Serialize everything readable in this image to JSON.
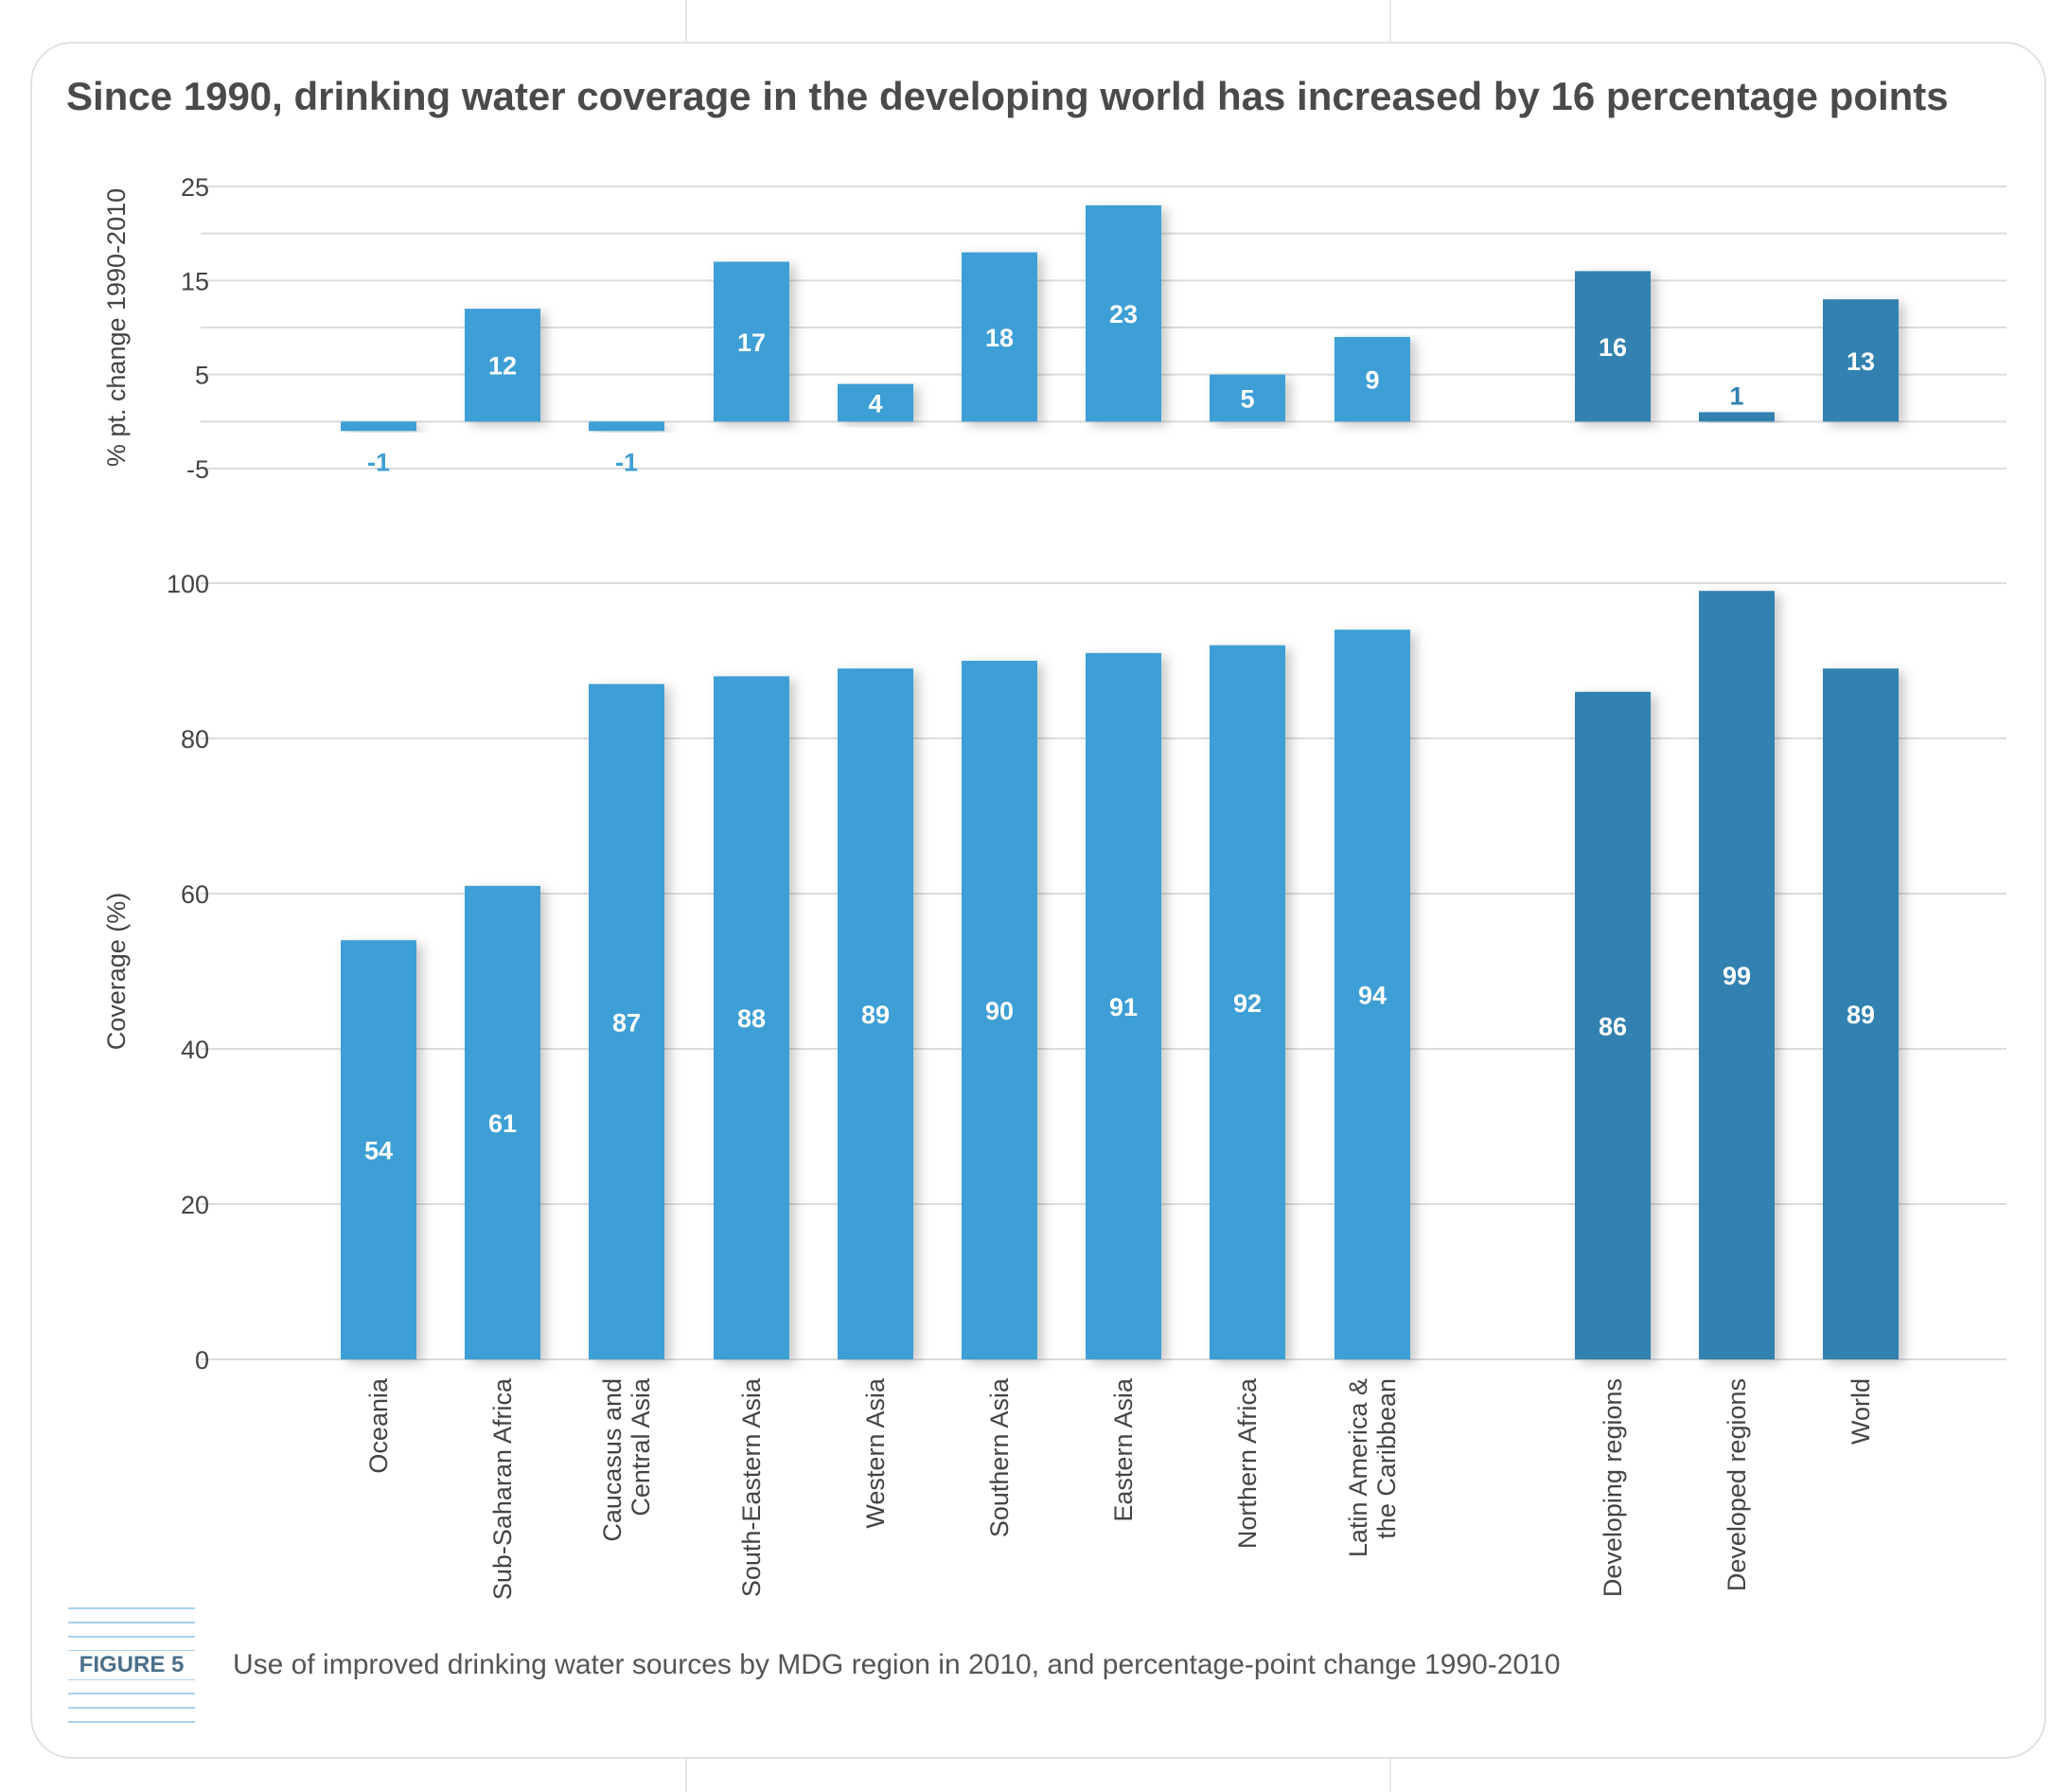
{
  "title": "Since 1990, drinking water coverage in the developing world has increased by 16 percentage points",
  "figure_label": "FIGURE 5",
  "caption": "Use of improved drinking water sources by MDG region in 2010, and percentage-point change 1990-2010",
  "colors": {
    "regions_bar": "#3e9fd5",
    "aggregate_bar": "#3181b0",
    "grid": "#dcdcdc",
    "axis_text": "#444444",
    "negative_label": "#3e9fd5"
  },
  "chart_data": [
    {
      "type": "bar",
      "ylabel": "% pt. change 1990-2010",
      "ylim": [
        -5,
        25
      ],
      "yticks": [
        -5,
        5,
        15,
        25
      ],
      "grid": true,
      "categories": [
        "Oceania",
        "Sub-Saharan Africa",
        "Caucasus and Central Asia",
        "South-Eastern Asia",
        "Western Asia",
        "Southern Asia",
        "Eastern Asia",
        "Northern Africa",
        "Latin America & the Caribbean",
        "Developing regions",
        "Developed regions",
        "World"
      ],
      "values": [
        -1,
        12,
        -1,
        17,
        4,
        18,
        23,
        5,
        9,
        16,
        1,
        13
      ]
    },
    {
      "type": "bar",
      "ylabel": "Coverage (%)",
      "ylim": [
        0,
        100
      ],
      "yticks": [
        0,
        20,
        40,
        60,
        80,
        100
      ],
      "grid": true,
      "categories": [
        "Oceania",
        "Sub-Saharan Africa",
        "Caucasus and Central Asia",
        "South-Eastern Asia",
        "Western Asia",
        "Southern Asia",
        "Eastern Asia",
        "Northern Africa",
        "Latin America & the Caribbean",
        "Developing regions",
        "Developed regions",
        "World"
      ],
      "category_label_lines": [
        [
          "Oceania"
        ],
        [
          "Sub-Saharan Africa"
        ],
        [
          "Caucasus and",
          "Central Asia"
        ],
        [
          "South-Eastern Asia"
        ],
        [
          "Western Asia"
        ],
        [
          "Southern Asia"
        ],
        [
          "Eastern Asia"
        ],
        [
          "Northern Africa"
        ],
        [
          "Latin America &",
          "the Caribbean"
        ],
        [
          "Developing regions"
        ],
        [
          "Developed regions"
        ],
        [
          "World"
        ]
      ],
      "values": [
        54,
        61,
        87,
        88,
        89,
        90,
        91,
        92,
        94,
        86,
        99,
        89
      ]
    }
  ]
}
